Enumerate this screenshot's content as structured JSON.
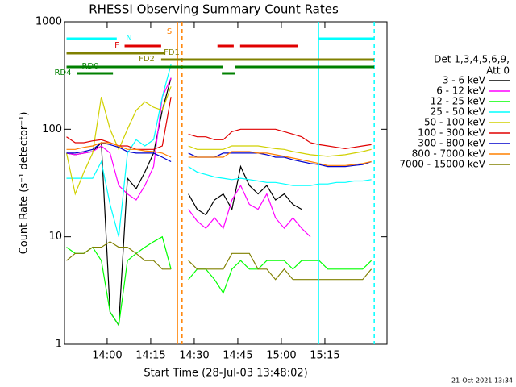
{
  "chart_data": {
    "type": "line",
    "title": "RHESSI Observing Summary Count Rates",
    "xlabel": "Start Time (28-Jul-03 13:48:02)",
    "ylabel": "Count Rate (s⁻¹ detector⁻¹)",
    "footer": "21-Oct-2021 13:34",
    "legend_title": [
      "Det 1,3,4,5,6,9,",
      "Att 0"
    ],
    "log_y": true,
    "xlim": [
      825.3,
      936.4
    ],
    "ylim": [
      1,
      1000
    ],
    "yticks": [
      1,
      10,
      100,
      1000
    ],
    "xticks": [
      {
        "value": 840,
        "label": "14:00"
      },
      {
        "value": 855,
        "label": "14:15"
      },
      {
        "value": 870,
        "label": "14:30"
      },
      {
        "value": 885,
        "label": "14:45"
      },
      {
        "value": 900,
        "label": "15:00"
      },
      {
        "value": 915,
        "label": "15:15"
      }
    ],
    "x": [
      826,
      829,
      832,
      835,
      838,
      841,
      844,
      847,
      850,
      853,
      856,
      859,
      862,
      865,
      868,
      871,
      874,
      877,
      880,
      883,
      886,
      889,
      892,
      895,
      898,
      901,
      904,
      907,
      910,
      913,
      916,
      919,
      922,
      925,
      928,
      931
    ],
    "series": [
      {
        "name": "3 - 6 keV",
        "color": "#000000",
        "values": [
          60,
          58,
          60,
          62,
          75,
          2,
          1.5,
          35,
          28,
          40,
          60,
          150,
          300,
          null,
          25,
          18,
          16,
          22,
          25,
          18,
          45,
          30,
          25,
          30,
          22,
          25,
          20,
          18,
          null,
          null,
          null,
          null,
          null,
          null,
          null,
          null
        ]
      },
      {
        "name": "6 - 12 keV",
        "color": "#ff00ff",
        "values": [
          60,
          58,
          60,
          62,
          70,
          60,
          30,
          25,
          22,
          30,
          45,
          200,
          300,
          null,
          18,
          14,
          12,
          15,
          12,
          22,
          30,
          20,
          18,
          25,
          15,
          12,
          15,
          12,
          10,
          null,
          null,
          null,
          null,
          null,
          null,
          null
        ]
      },
      {
        "name": "12 - 25 keV",
        "color": "#00ff00",
        "values": [
          8,
          7,
          7,
          8,
          6,
          2,
          1.5,
          6,
          7,
          8,
          9,
          10,
          5,
          null,
          4,
          5,
          5,
          4,
          3,
          5,
          6,
          5,
          5,
          6,
          6,
          6,
          5,
          6,
          6,
          6,
          5,
          5,
          5,
          5,
          5,
          6
        ]
      },
      {
        "name": "25 - 50 keV",
        "color": "#00ffff",
        "values": [
          35,
          35,
          35,
          35,
          50,
          20,
          10,
          60,
          80,
          70,
          80,
          200,
          400,
          null,
          45,
          40,
          38,
          36,
          35,
          34,
          35,
          34,
          33,
          32,
          32,
          31,
          30,
          30,
          30,
          31,
          31,
          32,
          32,
          33,
          33,
          34
        ]
      },
      {
        "name": "50 - 100 keV",
        "color": "#d0d000",
        "values": [
          60,
          25,
          40,
          60,
          200,
          100,
          65,
          100,
          150,
          180,
          160,
          150,
          250,
          null,
          70,
          65,
          65,
          65,
          65,
          70,
          70,
          70,
          70,
          68,
          66,
          65,
          62,
          60,
          58,
          57,
          56,
          57,
          58,
          60,
          62,
          65
        ]
      },
      {
        "name": "100 - 300 keV",
        "color": "#e00000",
        "values": [
          85,
          75,
          75,
          78,
          80,
          75,
          70,
          70,
          65,
          65,
          65,
          70,
          200,
          null,
          90,
          85,
          85,
          80,
          80,
          95,
          100,
          100,
          100,
          100,
          100,
          95,
          90,
          85,
          75,
          72,
          70,
          68,
          66,
          68,
          70,
          72
        ]
      },
      {
        "name": "300 - 800 keV",
        "color": "#0000cc",
        "values": [
          60,
          60,
          62,
          65,
          75,
          72,
          68,
          62,
          60,
          60,
          60,
          55,
          50,
          null,
          60,
          55,
          55,
          55,
          60,
          60,
          60,
          60,
          60,
          58,
          55,
          55,
          52,
          50,
          48,
          47,
          45,
          45,
          45,
          46,
          47,
          50
        ]
      },
      {
        "name": "800 - 7000 keV",
        "color": "#ff8000",
        "values": [
          65,
          65,
          68,
          70,
          75,
          75,
          70,
          65,
          65,
          63,
          62,
          60,
          55,
          null,
          55,
          55,
          55,
          55,
          55,
          62,
          62,
          62,
          60,
          60,
          58,
          56,
          54,
          52,
          50,
          48,
          46,
          46,
          46,
          47,
          48,
          50
        ]
      },
      {
        "name": "7000 - 15000 keV",
        "color": "#808000",
        "values": [
          6,
          7,
          7,
          8,
          8,
          9,
          8,
          8,
          7,
          6,
          6,
          5,
          5,
          null,
          6,
          5,
          5,
          5,
          5,
          7,
          7,
          7,
          5,
          5,
          4,
          5,
          4,
          4,
          4,
          4,
          4,
          4,
          4,
          4,
          4,
          5
        ]
      }
    ],
    "flags": [
      {
        "label": "N",
        "color": "#00ffff",
        "spans": [
          [
            826,
            843.3
          ],
          [
            912.8,
            932
          ]
        ]
      },
      {
        "label": "F",
        "color": "#e00000",
        "spans": [
          [
            846,
            858.6
          ],
          [
            878,
            883.6
          ],
          [
            885.8,
            905.8
          ]
        ]
      },
      {
        "label": "S",
        "color": "#ff8000",
        "spans": []
      },
      {
        "label": "FD1",
        "color": "#808000",
        "spans": [
          [
            826,
            860
          ]
        ]
      },
      {
        "label": "FD2",
        "color": "#808000",
        "spans": [
          [
            858.6,
            932
          ]
        ]
      },
      {
        "label": "RD0",
        "color": "#008000",
        "spans": [
          [
            826,
            880
          ],
          [
            884,
            932
          ]
        ]
      },
      {
        "label": "RD4",
        "color": "#008000",
        "spans": [
          [
            829.6,
            842
          ],
          [
            879.5,
            884
          ]
        ]
      }
    ],
    "markers": [
      {
        "x": 864.2,
        "color": "#ff8000",
        "dashed": false
      },
      {
        "x": 865.8,
        "color": "#ff8000",
        "dashed": true
      },
      {
        "x": 912.8,
        "color": "#00ffff",
        "dashed": false
      },
      {
        "x": 932,
        "color": "#00ffff",
        "dashed": true
      }
    ]
  }
}
